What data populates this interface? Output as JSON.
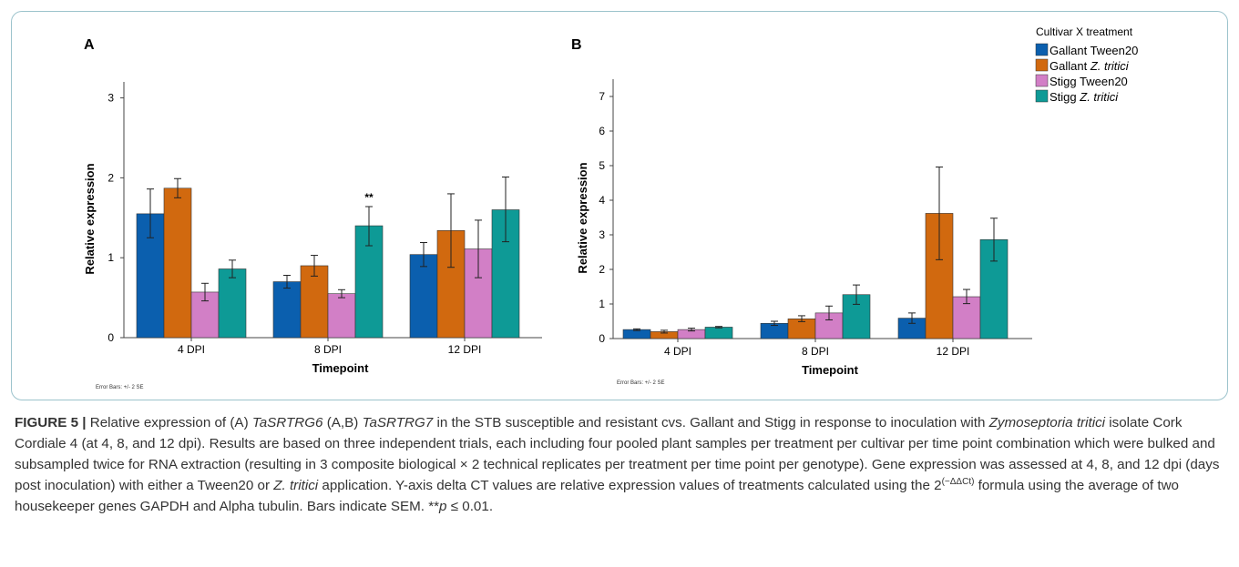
{
  "legend": {
    "title": "Cultivar X treatment",
    "items": [
      {
        "prefix": "Gallant ",
        "italic": "Tween20",
        "italic_on": false,
        "color": "#0b5fae"
      },
      {
        "prefix": "Gallant ",
        "italic": "Z. tritici",
        "italic_on": true,
        "color": "#d1690f"
      },
      {
        "prefix": "Stigg ",
        "italic": "Tween20",
        "italic_on": false,
        "color": "#d27fc6"
      },
      {
        "prefix": "Stigg ",
        "italic": "Z. tritici",
        "italic_on": true,
        "color": "#0e9a96"
      }
    ]
  },
  "chart_data": [
    {
      "panel": "A",
      "type": "bar",
      "categories": [
        "4 DPI",
        "8 DPI",
        "12 DPI"
      ],
      "xlabel": "Timepoint",
      "ylabel": "Relative expression",
      "ylim": [
        0,
        3.2
      ],
      "yticks": [
        "0",
        "1",
        "2",
        "3"
      ],
      "error_note": "Error Bars: +/- 2 SE",
      "annotations": [
        {
          "category": "8 DPI",
          "series": "Stigg Z. tritici",
          "text": "**"
        }
      ],
      "series": [
        {
          "name": "Gallant Tween20",
          "values": [
            1.55,
            0.7,
            1.04
          ],
          "err_low": [
            1.25,
            0.62,
            0.89
          ],
          "err_high": [
            1.86,
            0.78,
            1.19
          ]
        },
        {
          "name": "Gallant Z. tritici",
          "values": [
            1.87,
            0.9,
            1.34
          ],
          "err_low": [
            1.75,
            0.77,
            0.88
          ],
          "err_high": [
            1.99,
            1.03,
            1.8
          ]
        },
        {
          "name": "Stigg Tween20",
          "values": [
            0.57,
            0.55,
            1.11
          ],
          "err_low": [
            0.46,
            0.5,
            0.75
          ],
          "err_high": [
            0.68,
            0.6,
            1.47
          ]
        },
        {
          "name": "Stigg Z. tritici",
          "values": [
            0.86,
            1.4,
            1.6
          ],
          "err_low": [
            0.75,
            1.15,
            1.2
          ],
          "err_high": [
            0.97,
            1.64,
            2.01
          ]
        }
      ]
    },
    {
      "panel": "B",
      "type": "bar",
      "categories": [
        "4 DPI",
        "8 DPI",
        "12 DPI"
      ],
      "xlabel": "Timepoint",
      "ylabel": "Relative expression",
      "ylim": [
        0,
        7.5
      ],
      "yticks": [
        "0",
        "1",
        "2",
        "3",
        "4",
        "5",
        "6",
        "7"
      ],
      "error_note": "Error Bars: +/- 2 SE",
      "annotations": [],
      "series": [
        {
          "name": "Gallant Tween20",
          "values": [
            0.26,
            0.44,
            0.59
          ],
          "err_low": [
            0.23,
            0.38,
            0.44
          ],
          "err_high": [
            0.28,
            0.5,
            0.74
          ]
        },
        {
          "name": "Gallant Z. tritici",
          "values": [
            0.2,
            0.57,
            3.62
          ],
          "err_low": [
            0.16,
            0.49,
            2.28
          ],
          "err_high": [
            0.24,
            0.66,
            4.96
          ]
        },
        {
          "name": "Stigg Tween20",
          "values": [
            0.26,
            0.74,
            1.21
          ],
          "err_low": [
            0.22,
            0.54,
            1.01
          ],
          "err_high": [
            0.3,
            0.94,
            1.42
          ]
        },
        {
          "name": "Stigg Z. tritici",
          "values": [
            0.33,
            1.27,
            2.86
          ],
          "err_low": [
            0.31,
            0.99,
            2.24
          ],
          "err_high": [
            0.35,
            1.55,
            3.48
          ]
        }
      ]
    }
  ],
  "caption": {
    "label": "FIGURE 5 |",
    "s1": " Relative expression of (A) ",
    "g1": "TaSRTRG6",
    "s2": " (A,B) ",
    "g2": "TaSRTRG7",
    "s3": " in the STB susceptible and resistant cvs. Gallant and Stigg in response to inoculation with ",
    "species": "Zymoseptoria tritici",
    "s4": " isolate Cork Cordiale 4 (at 4, 8, and 12 dpi). Results are based on three independent trials, each including four pooled plant samples per treatment per cultivar per time point combination which were bulked and subsampled twice for RNA extraction (resulting in 3 composite biological × 2 technical replicates per treatment per time point per genotype). Gene expression was assessed at 4, 8, and 12 dpi (days post inoculation) with either a Tween20 or ",
    "zt": "Z. tritici",
    "s5": " application. Y-axis delta CT values are relative expression values of treatments calculated using the 2",
    "sup": "(−ΔΔCt)",
    "s6": " formula using the average of two housekeeper genes GAPDH and Alpha tubulin. Bars indicate SEM. **",
    "p": "p",
    "s7": " ≤ 0.01."
  }
}
